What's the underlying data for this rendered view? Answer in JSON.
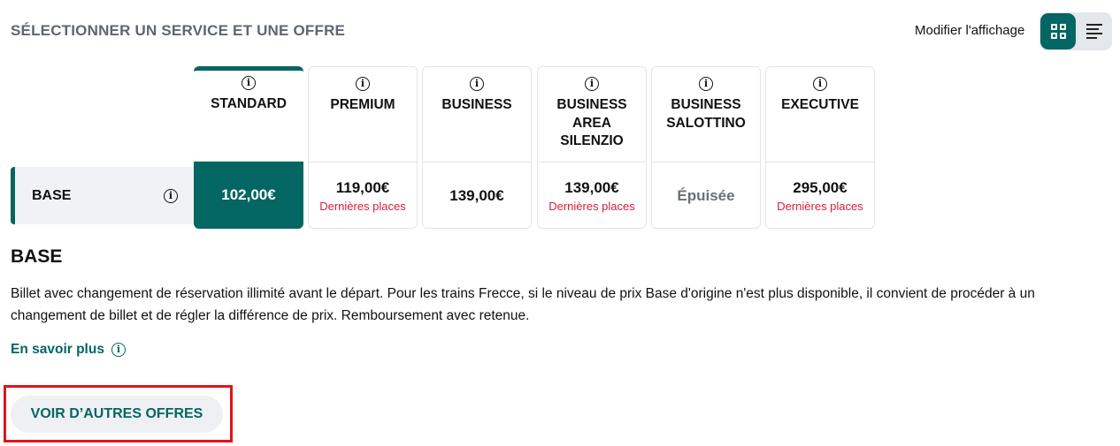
{
  "header": {
    "title": "SÉLECTIONNER UN SERVICE ET UNE OFFRE",
    "view_label": "Modifier l'affichage",
    "view_modes": [
      {
        "icon": "grid-icon",
        "active": true
      },
      {
        "icon": "list-icon",
        "active": false
      }
    ]
  },
  "colors": {
    "accent": "#046662",
    "warning": "#d6203b"
  },
  "offer_row": {
    "label": "BASE"
  },
  "services": [
    {
      "name": "STANDARD",
      "price": "102,00€",
      "note": "",
      "selected": true
    },
    {
      "name": "PREMIUM",
      "price": "119,00€",
      "note": "Dernières places"
    },
    {
      "name": "BUSINESS",
      "price": "139,00€",
      "note": ""
    },
    {
      "name": "BUSINESS AREA SILENZIO",
      "price": "139,00€",
      "note": "Dernières places"
    },
    {
      "name": "BUSINESS SALOTTINO",
      "price": "Épuisée",
      "note": ""
    },
    {
      "name": "EXECUTIVE",
      "price": "295,00€",
      "note": "Dernières places"
    }
  ],
  "details": {
    "title": "BASE",
    "description": "Billet avec changement de réservation illimité avant le départ. Pour les trains Frecce, si le niveau de prix Base d'origine n'est plus disponible, il convient de procéder à un changement de billet et de régler la différence de prix. Remboursement avec retenue.",
    "more_link": "En savoir plus",
    "more_offers_button": "VOIR D’AUTRES OFFRES"
  }
}
